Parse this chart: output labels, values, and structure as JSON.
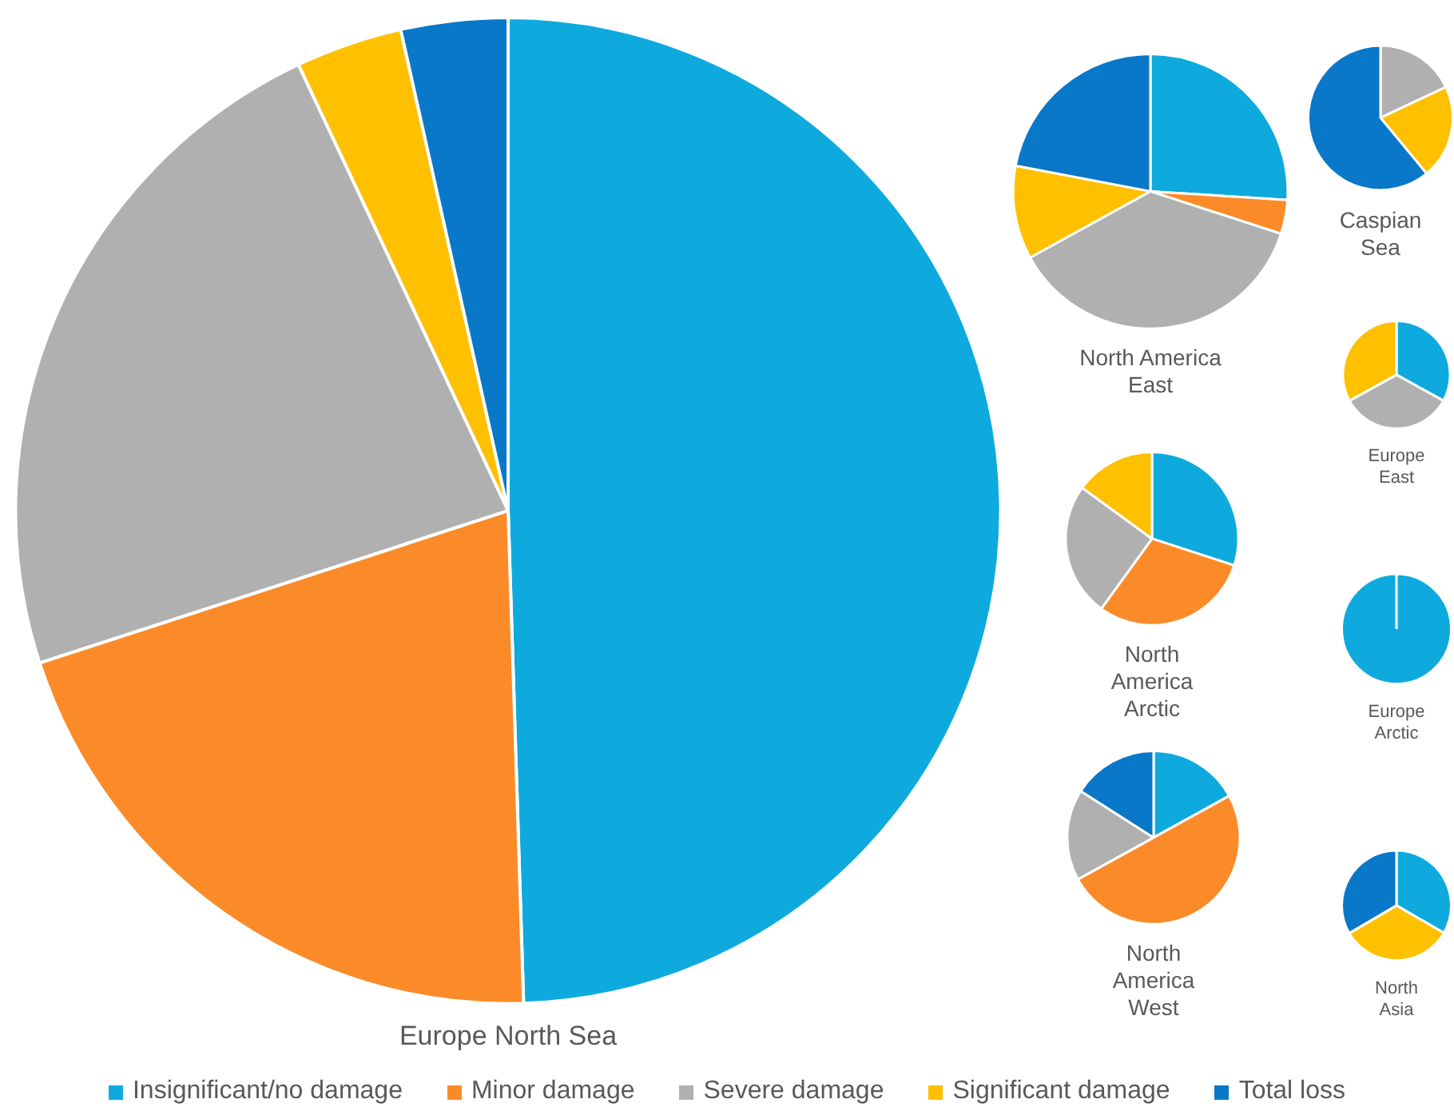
{
  "chart_data": [
    {
      "type": "pie",
      "title": "Europe North Sea",
      "categories": [
        "Insignificant/no damage",
        "Minor damage",
        "Severe damage",
        "Significant damage",
        "Total loss"
      ],
      "values": [
        49.5,
        20.5,
        23,
        3.5,
        3.5
      ],
      "colors": [
        "#0eaade",
        "#fb8b28",
        "#b0b0b0",
        "#ffc000",
        "#0a78c8"
      ],
      "legend": "bottom"
    },
    {
      "type": "pie",
      "title": "North America East",
      "categories": [
        null,
        null,
        null,
        null,
        null
      ],
      "values": [
        26,
        4,
        37,
        11,
        22
      ],
      "colors": [
        "#0eaade",
        "#fb8b28",
        "#b0b0b0",
        "#ffc000",
        "#0a78c8"
      ]
    },
    {
      "type": "pie",
      "title": "Caspian Sea",
      "categories": [
        null,
        null,
        null,
        null,
        null
      ],
      "values": [
        0,
        0,
        18,
        21,
        61
      ],
      "colors": [
        "#0eaade",
        "#fb8b28",
        "#b0b0b0",
        "#ffc000",
        "#0a78c8"
      ]
    },
    {
      "type": "pie",
      "title": "Europe East",
      "categories": [
        null,
        null,
        null,
        null,
        null
      ],
      "values": [
        33,
        0,
        34,
        33,
        0
      ],
      "colors": [
        "#0eaade",
        "#fb8b28",
        "#b0b0b0",
        "#ffc000",
        "#0a78c8"
      ]
    },
    {
      "type": "pie",
      "title": "North America Arctic",
      "categories": [
        null,
        null,
        null,
        null,
        null
      ],
      "values": [
        30,
        30,
        25,
        15,
        0
      ],
      "colors": [
        "#0eaade",
        "#fb8b28",
        "#b0b0b0",
        "#ffc000",
        "#0a78c8"
      ]
    },
    {
      "type": "pie",
      "title": "Europe Arctic",
      "categories": [
        null,
        null,
        null,
        null,
        null
      ],
      "values": [
        100,
        0,
        0,
        0,
        0
      ],
      "colors": [
        "#0eaade",
        "#fb8b28",
        "#b0b0b0",
        "#ffc000",
        "#0a78c8"
      ]
    },
    {
      "type": "pie",
      "title": "North America West",
      "categories": [
        null,
        null,
        null,
        null,
        null
      ],
      "values": [
        17,
        50,
        17,
        0,
        16
      ],
      "colors": [
        "#0eaade",
        "#fb8b28",
        "#b0b0b0",
        "#ffc000",
        "#0a78c8"
      ]
    },
    {
      "type": "pie",
      "title": "North Asia",
      "categories": [
        null,
        null,
        null,
        null,
        null
      ],
      "values": [
        33.3,
        0,
        0,
        33.3,
        33.4
      ],
      "colors": [
        "#0eaade",
        "#fb8b28",
        "#b0b0b0",
        "#ffc000",
        "#0a78c8"
      ]
    }
  ]
}
